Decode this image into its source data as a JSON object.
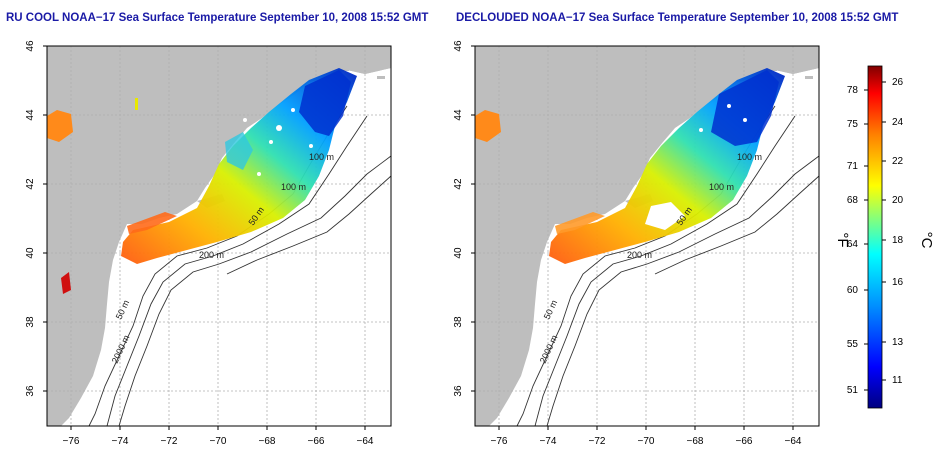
{
  "panels": [
    {
      "title": "RU COOL NOAA−17 Sea Surface Temperature September 10, 2008 15:52 GMT",
      "contour_labels": [
        "100 m",
        "100 m",
        "50 m",
        "200 m",
        "50 m",
        "2000 m"
      ]
    },
    {
      "title": "DECLOUDED NOAA−17 Sea Surface Temperature September 10, 2008 15:52 GMT",
      "contour_labels": [
        "100 m",
        "100 m",
        "50 m",
        "200 m",
        "50 m",
        "2000 m"
      ]
    }
  ],
  "axes": {
    "x_ticks": [
      "−76",
      "−74",
      "−72",
      "−70",
      "−68",
      "−66",
      "−64"
    ],
    "y_ticks": [
      "46",
      "44",
      "42",
      "40",
      "38",
      "36"
    ]
  },
  "colorbar": {
    "fahrenheit_label": "°F",
    "celsius_label": "°C",
    "fahrenheit_ticks": [
      "78",
      "75",
      "71",
      "68",
      "64",
      "60",
      "55",
      "51"
    ],
    "celsius_ticks": [
      "26",
      "24",
      "22",
      "20",
      "18",
      "16",
      "13",
      "11"
    ],
    "colors": [
      "#000080",
      "#0000ff",
      "#0080ff",
      "#00ffff",
      "#80ff80",
      "#ffff00",
      "#ff8000",
      "#ff0000",
      "#800000"
    ]
  },
  "colors": {
    "land": "#bebebe",
    "water": "#ffffff",
    "title": "#1a1aa6",
    "contour": "#333333",
    "grid": "#b0b0b0"
  }
}
